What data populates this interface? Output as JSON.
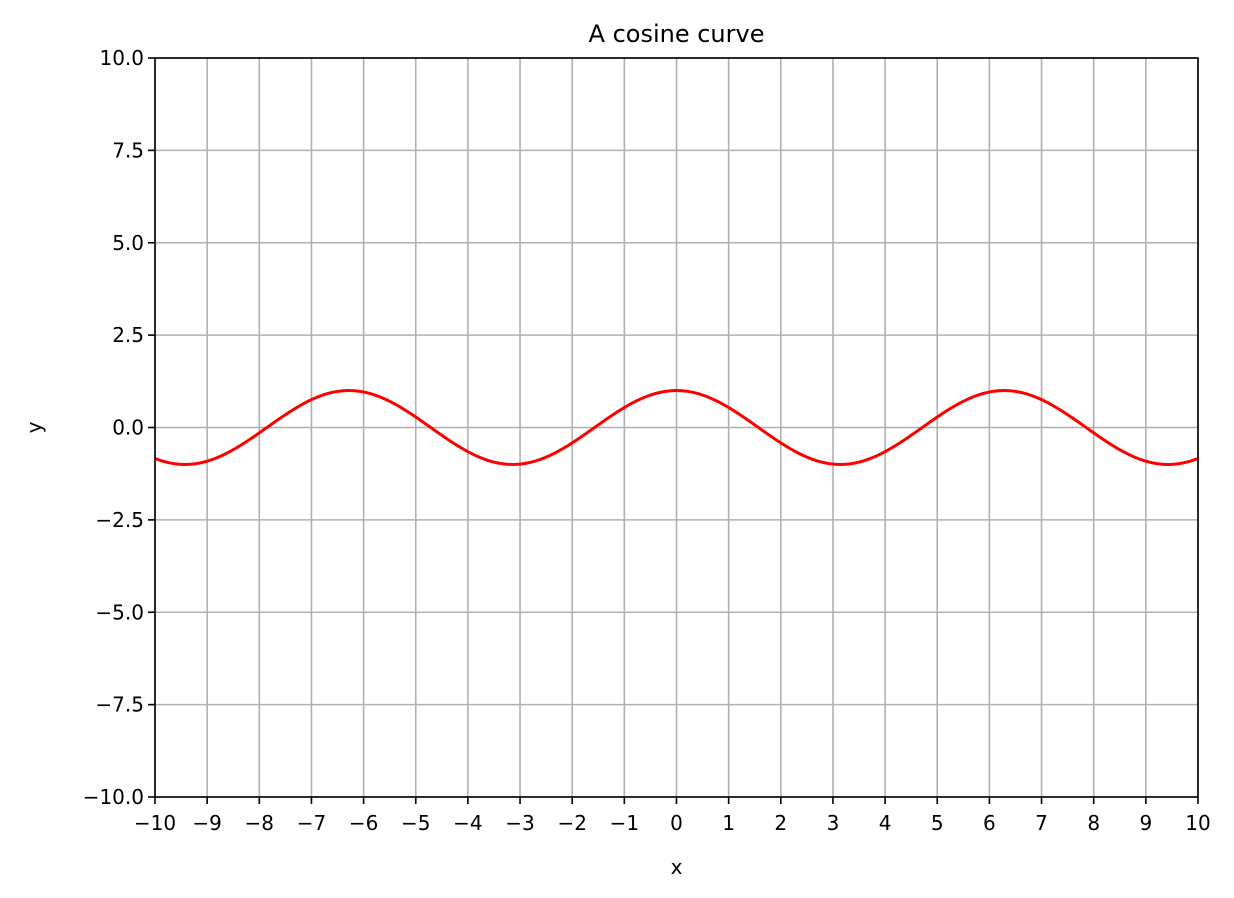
{
  "chart_data": {
    "type": "line",
    "title": "A cosine curve",
    "xlabel": "x",
    "ylabel": "y",
    "xlim": [
      -10,
      10
    ],
    "ylim": [
      -10,
      10
    ],
    "grid": true,
    "x_ticks": [
      -10,
      -9,
      -8,
      -7,
      -6,
      -5,
      -4,
      -3,
      -2,
      -1,
      0,
      1,
      2,
      3,
      4,
      5,
      6,
      7,
      8,
      9,
      10
    ],
    "x_tick_labels": [
      "−10",
      "−9",
      "−8",
      "−7",
      "−6",
      "−5",
      "−4",
      "−3",
      "−2",
      "−1",
      "0",
      "1",
      "2",
      "3",
      "4",
      "5",
      "6",
      "7",
      "8",
      "9",
      "10"
    ],
    "y_ticks": [
      -10,
      -7.5,
      -5,
      -2.5,
      0,
      2.5,
      5,
      7.5,
      10
    ],
    "y_tick_labels": [
      "−10.0",
      "−7.5",
      "−5.0",
      "−2.5",
      "0.0",
      "2.5",
      "5.0",
      "7.5",
      "10.0"
    ],
    "series": [
      {
        "function": "cos(x)",
        "color": "#ff0000",
        "x": [
          -10,
          -9.5,
          -9,
          -8.5,
          -8,
          -7.5,
          -7,
          -6.5,
          -6,
          -5.5,
          -5,
          -4.5,
          -4,
          -3.5,
          -3,
          -2.5,
          -2,
          -1.5,
          -1,
          -0.5,
          0,
          0.5,
          1,
          1.5,
          2,
          2.5,
          3,
          3.5,
          4,
          4.5,
          5,
          5.5,
          6,
          6.5,
          7,
          7.5,
          8,
          8.5,
          9,
          9.5,
          10
        ],
        "y": [
          -0.84,
          -1.0,
          -0.91,
          -0.6,
          -0.15,
          0.35,
          0.75,
          0.98,
          0.96,
          0.71,
          0.28,
          -0.21,
          -0.65,
          -0.94,
          -0.99,
          -0.8,
          -0.42,
          0.07,
          0.54,
          0.88,
          1.0,
          0.88,
          0.54,
          0.07,
          -0.42,
          -0.8,
          -0.99,
          -0.94,
          -0.65,
          -0.21,
          0.28,
          0.71,
          0.96,
          0.98,
          0.75,
          0.35,
          -0.15,
          -0.6,
          -0.91,
          -1.0,
          -0.84
        ]
      }
    ]
  }
}
